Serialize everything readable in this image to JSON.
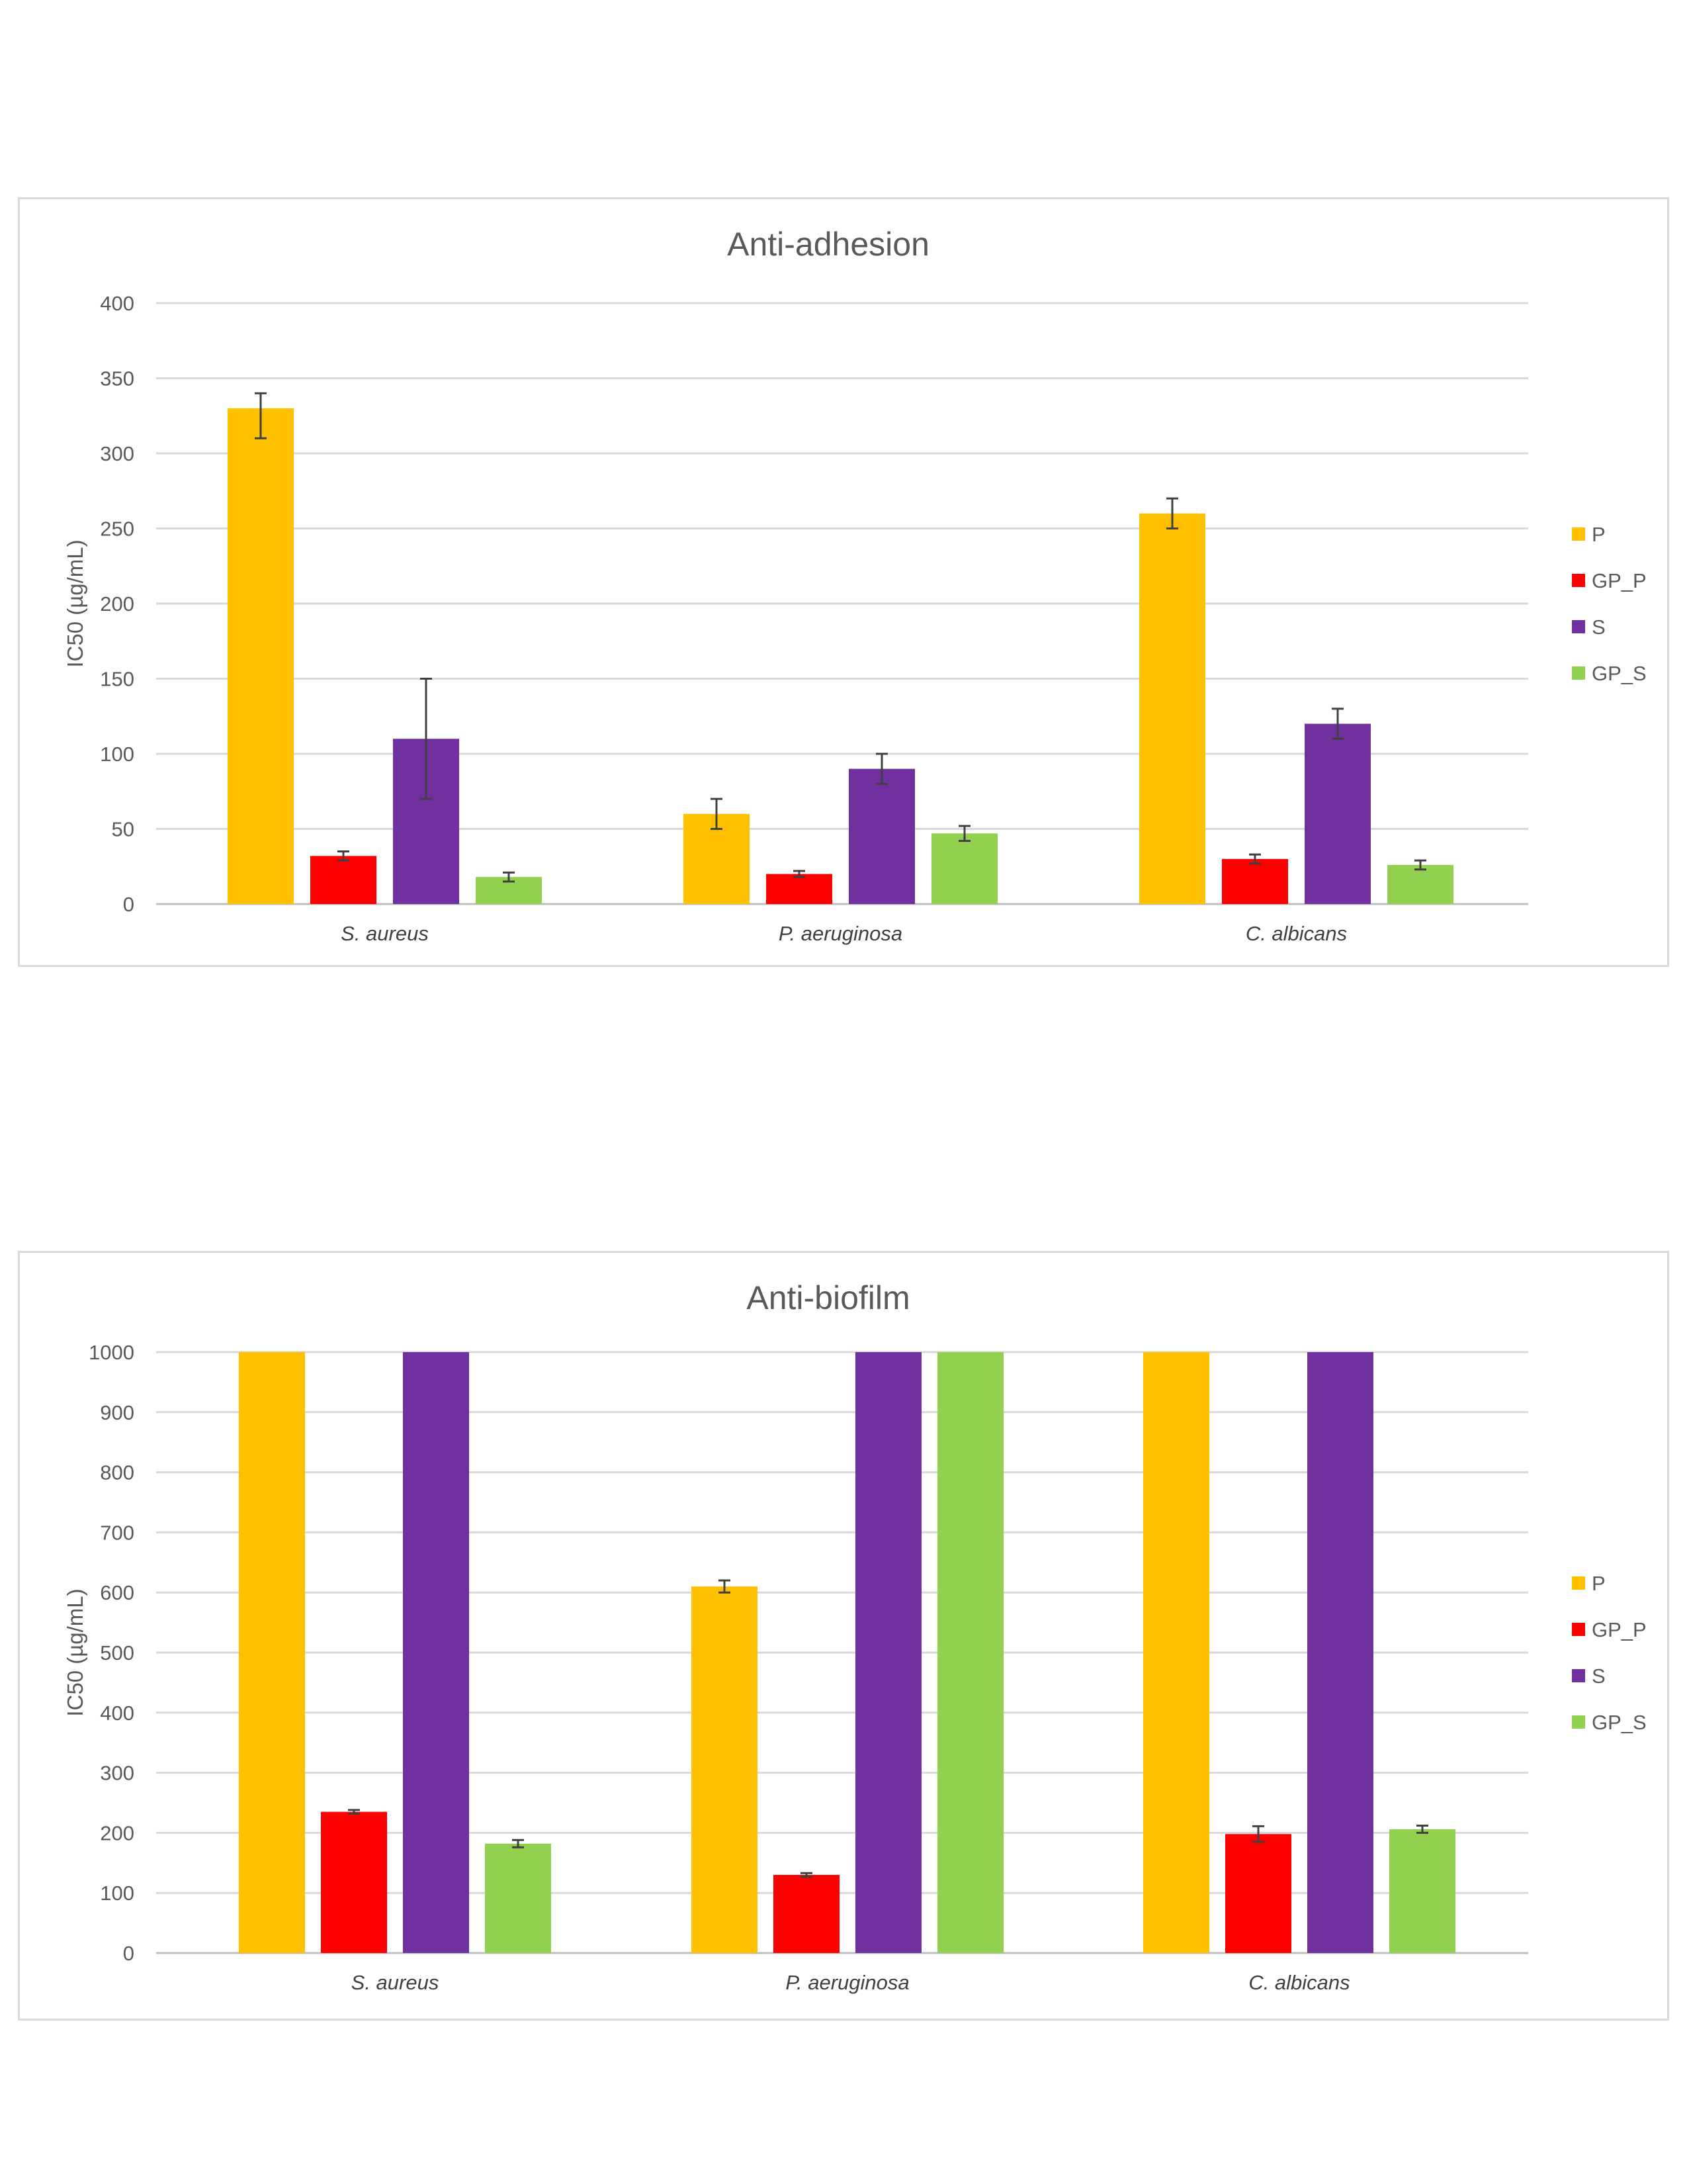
{
  "chart_data": [
    {
      "type": "bar",
      "title": "Anti-adhesion",
      "ylabel": "IC50 (µg/mL)",
      "xlabel": "",
      "ylim": [
        0,
        400
      ],
      "yticks": [
        0,
        50,
        100,
        150,
        200,
        250,
        300,
        350,
        400
      ],
      "grid": true,
      "legend": "right",
      "categories": [
        "S. aureus",
        "P. aeruginosa",
        "C. albicans"
      ],
      "series": [
        {
          "name": "P",
          "color": "#FFC000",
          "values": [
            330,
            60,
            260
          ],
          "errors": [
            [
              310,
              340
            ],
            [
              50,
              70
            ],
            [
              250,
              270
            ]
          ]
        },
        {
          "name": "GP_P",
          "color": "#FF0000",
          "values": [
            32,
            20,
            30
          ],
          "errors": [
            [
              29,
              35
            ],
            [
              18,
              22
            ],
            [
              27,
              33
            ]
          ]
        },
        {
          "name": "S",
          "color": "#7030A0",
          "values": [
            110,
            90,
            120
          ],
          "errors": [
            [
              70,
              150
            ],
            [
              80,
              100
            ],
            [
              110,
              130
            ]
          ]
        },
        {
          "name": "GP_S",
          "color": "#92D050",
          "values": [
            18,
            47,
            26
          ],
          "errors": [
            [
              15,
              21
            ],
            [
              42,
              52
            ],
            [
              23,
              29
            ]
          ]
        }
      ]
    },
    {
      "type": "bar",
      "title": "Anti-biofilm",
      "ylabel": "IC50 (µg/mL)",
      "xlabel": "",
      "ylim": [
        0,
        1000
      ],
      "yticks": [
        0,
        100,
        200,
        300,
        400,
        500,
        600,
        700,
        800,
        900,
        1000
      ],
      "grid": true,
      "legend": "right",
      "categories": [
        "S. aureus",
        "P. aeruginosa",
        "C. albicans"
      ],
      "series": [
        {
          "name": "P",
          "color": "#FFC000",
          "values": [
            1000,
            610,
            1000
          ],
          "errors": [
            null,
            [
              600,
              620
            ],
            null
          ]
        },
        {
          "name": "GP_P",
          "color": "#FF0000",
          "values": [
            235,
            130,
            198
          ],
          "errors": [
            [
              232,
              238
            ],
            [
              127,
              133
            ],
            [
              185,
              211
            ]
          ]
        },
        {
          "name": "S",
          "color": "#7030A0",
          "values": [
            1000,
            1000,
            1000
          ],
          "errors": [
            null,
            null,
            null
          ]
        },
        {
          "name": "GP_S",
          "color": "#92D050",
          "values": [
            182,
            1000,
            206
          ],
          "errors": [
            [
              176,
              188
            ],
            null,
            [
              200,
              212
            ]
          ]
        }
      ]
    }
  ]
}
